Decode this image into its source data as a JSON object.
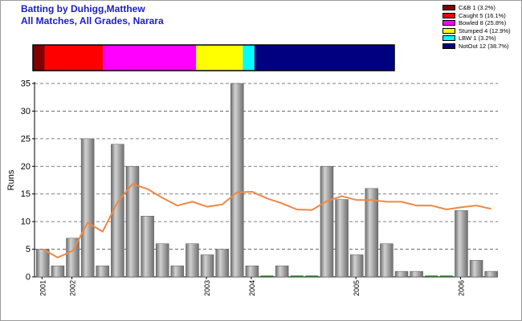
{
  "title": {
    "line1": "Batting by Duhigg,Matthew",
    "line2": "All Matches, All Grades, Narara"
  },
  "colors": {
    "bar": "#9e9e9e",
    "bar_light": "#d2d2d2",
    "bar_dark": "#6e6e6e",
    "average_line": "#ee8844",
    "grid": "#555555",
    "title": "#1c1cc8"
  },
  "dismissals": [
    {
      "label": "C&B 1 (3.2%)",
      "count": 1,
      "color": "#800000"
    },
    {
      "label": "Caught 5 (16.1%)",
      "count": 5,
      "color": "#ff0000"
    },
    {
      "label": "Bowled 8 (25.8%)",
      "count": 8,
      "color": "#ff00ff"
    },
    {
      "label": "Stumped 4 (12.9%)",
      "count": 4,
      "color": "#ffff00"
    },
    {
      "label": "LBW 1 (3.2%)",
      "count": 1,
      "color": "#00ffff"
    },
    {
      "label": "NotOut 12 (38.7%)",
      "count": 12,
      "color": "#000080"
    }
  ],
  "chart_data": {
    "type": "bar",
    "title": "Batting by Duhigg,Matthew",
    "subtitle": "All Matches, All Grades, Narara",
    "ylabel": "Runs",
    "xlabel": "",
    "ylim": [
      0,
      35
    ],
    "yticks": [
      0,
      5,
      10,
      15,
      20,
      25,
      30,
      35
    ],
    "grid": true,
    "legend_position": "top-right",
    "year_labels": [
      {
        "label": "2001",
        "index": 0
      },
      {
        "label": "2002",
        "index": 2
      },
      {
        "label": "2003",
        "index": 11
      },
      {
        "label": "2004",
        "index": 14
      },
      {
        "label": "2005",
        "index": 21
      },
      {
        "label": "2006",
        "index": 28
      }
    ],
    "series": [
      {
        "name": "Runs",
        "kind": "bar",
        "values": [
          5,
          2,
          7,
          25,
          2,
          24,
          20,
          11,
          6,
          2,
          6,
          4,
          5,
          35,
          2,
          0,
          2,
          0,
          0,
          20,
          14,
          4,
          16,
          6,
          1,
          1,
          0,
          0,
          12,
          3,
          1
        ]
      },
      {
        "name": "Average",
        "kind": "line",
        "values": [
          5,
          3.5,
          4.7,
          9.8,
          8.2,
          13.5,
          16.8,
          15.9,
          14.3,
          12.9,
          13.6,
          12.7,
          13.1,
          15.3,
          15.4,
          14.2,
          13.3,
          12.2,
          12.1,
          13.7,
          14.6,
          13.9,
          13.9,
          13.6,
          13.6,
          12.9,
          12.9,
          12.2,
          12.6,
          12.9,
          12.3
        ]
      }
    ]
  }
}
